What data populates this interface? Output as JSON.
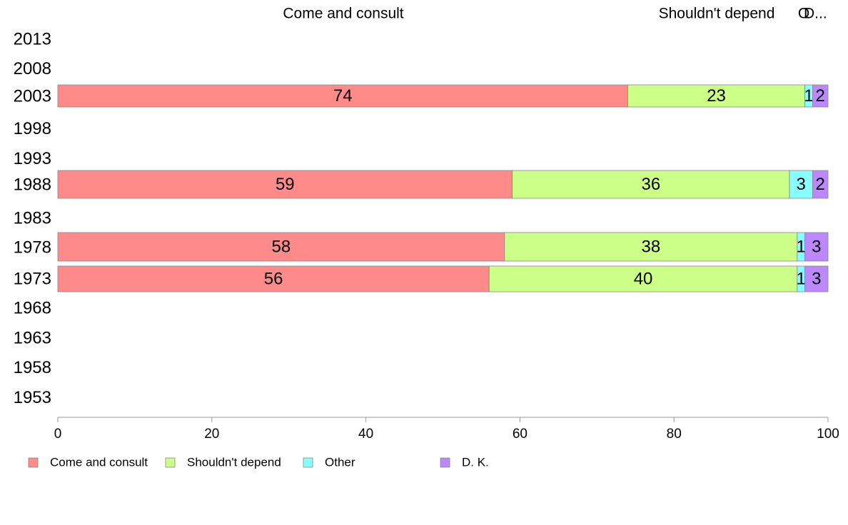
{
  "chart_data": {
    "type": "bar",
    "orientation": "horizontal",
    "stacked": true,
    "categories": [
      "2013",
      "2008",
      "2003",
      "1998",
      "1993",
      "1988",
      "1983",
      "1978",
      "1973",
      "1968",
      "1963",
      "1958",
      "1953"
    ],
    "series": [
      {
        "name": "Come and consult",
        "color": "#FF8A8A",
        "values": [
          null,
          null,
          74,
          null,
          null,
          59,
          null,
          58,
          56,
          null,
          null,
          null,
          null
        ]
      },
      {
        "name": "Shouldn't depend",
        "color": "#CCFF88",
        "values": [
          null,
          null,
          23,
          null,
          null,
          36,
          null,
          38,
          40,
          null,
          null,
          null,
          null
        ]
      },
      {
        "name": "Other",
        "color": "#88FFFF",
        "values": [
          null,
          null,
          1,
          null,
          null,
          3,
          null,
          1,
          1,
          null,
          null,
          null,
          null
        ]
      },
      {
        "name": "D. K.",
        "color": "#BB88FF",
        "values": [
          null,
          null,
          2,
          null,
          null,
          2,
          null,
          3,
          3,
          null,
          null,
          null,
          null
        ]
      }
    ],
    "top_labels": [
      "Come and consult",
      "Shouldn't depend",
      "O",
      "D..."
    ],
    "xlim": [
      0,
      100
    ],
    "xticks": [
      0,
      20,
      40,
      60,
      80,
      100
    ],
    "xlabel": "",
    "ylabel": "",
    "title": "",
    "grid": false,
    "legend": "bottom-left"
  }
}
